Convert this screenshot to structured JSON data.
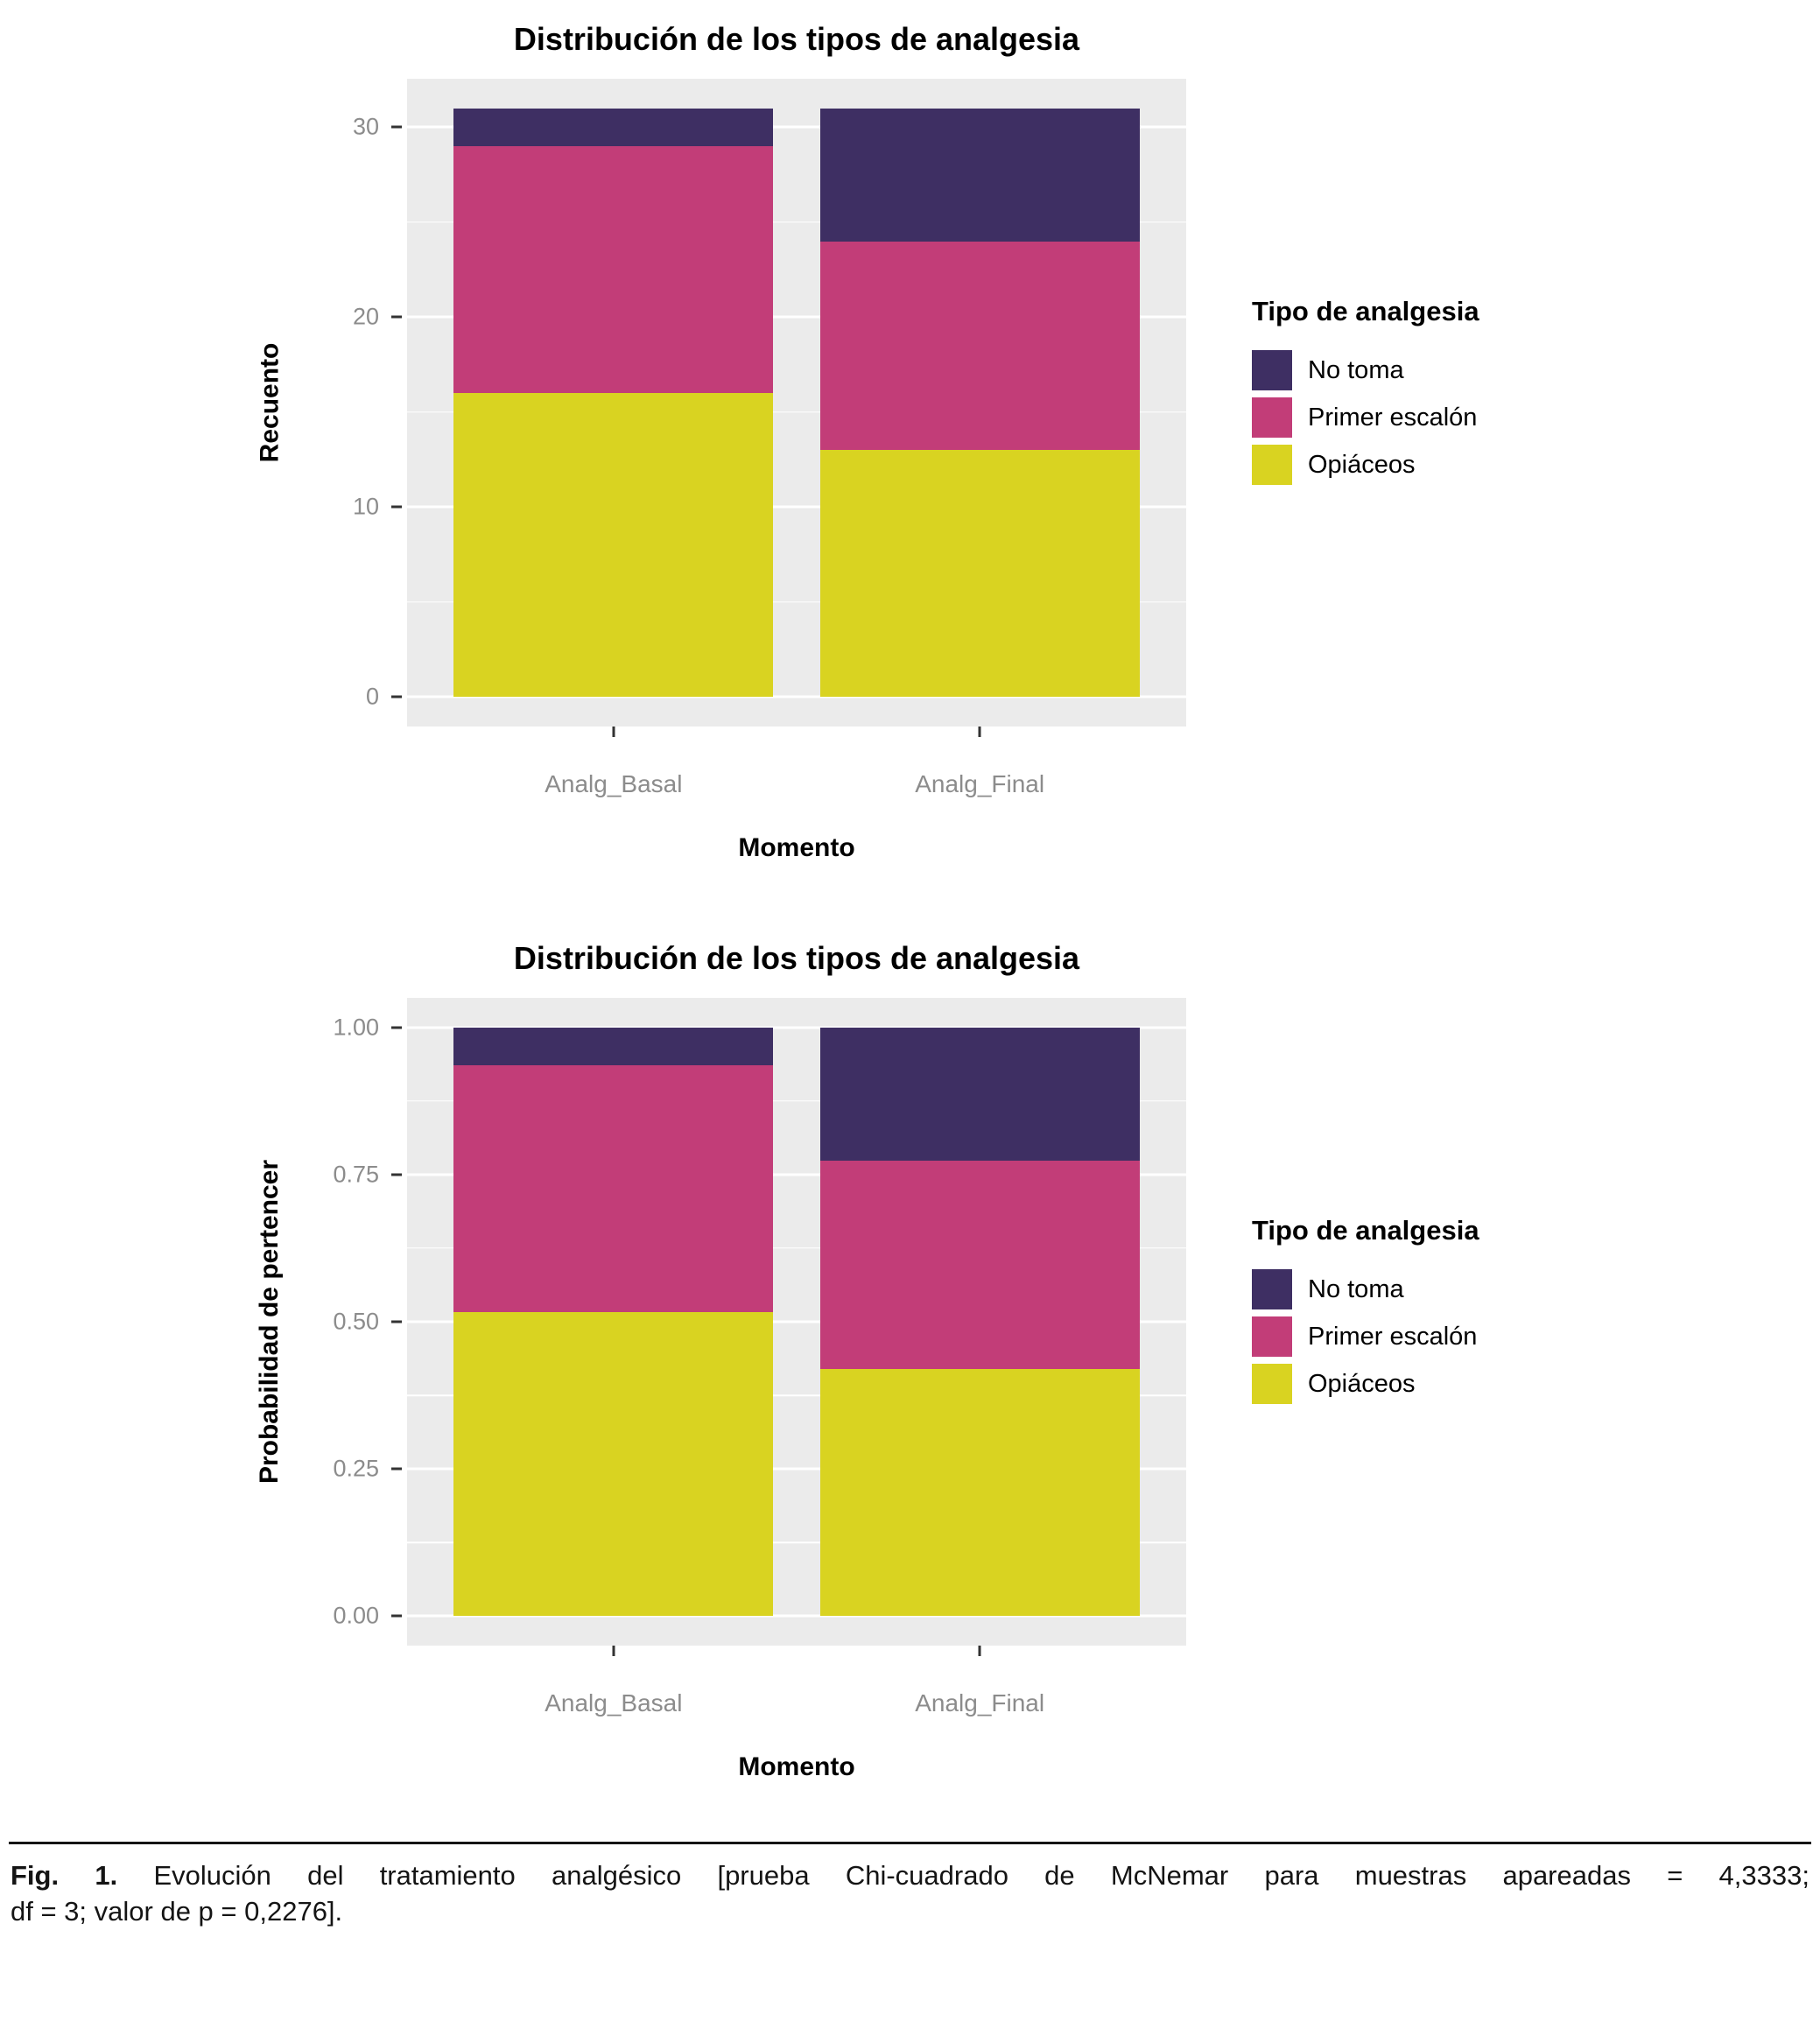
{
  "palette": {
    "no_toma": "#3e2f63",
    "primer_escalon": "#c23d78",
    "opiaceos": "#d9d321",
    "panel_bg": "#ebebeb",
    "grid_major": "#ffffff",
    "grid_minor": "#ffffff",
    "tick_mark": "#333333",
    "tick_label": "#8c8c8c",
    "axis_title": "#000000",
    "title": "#000000",
    "caption": "#141414"
  },
  "chart_data": [
    {
      "type": "bar",
      "stacked": true,
      "title": "Distribución de los tipos de analgesia",
      "xlabel": "Momento",
      "ylabel": "Recuento",
      "legend_title": "Tipo de analgesia",
      "legend_position": "right",
      "grid": true,
      "categories": [
        "Analg_Basal",
        "Analg_Final"
      ],
      "series": [
        {
          "name": "No toma",
          "color_key": "no_toma",
          "values": [
            2,
            7
          ]
        },
        {
          "name": "Primer escalón",
          "color_key": "primer_escalon",
          "values": [
            13,
            11
          ]
        },
        {
          "name": "Opiáceos",
          "color_key": "opiaceos",
          "values": [
            16,
            13
          ]
        }
      ],
      "ylim": [
        0,
        31
      ],
      "yticks": [
        {
          "v": 0,
          "label": "0"
        },
        {
          "v": 10,
          "label": "10"
        },
        {
          "v": 20,
          "label": "20"
        },
        {
          "v": 30,
          "label": "30"
        }
      ],
      "yticks_minor": [
        5,
        15,
        25
      ]
    },
    {
      "type": "bar",
      "stacked": true,
      "title": "Distribución de los tipos de analgesia",
      "xlabel": "Momento",
      "ylabel": "Probabilidad de pertencer",
      "legend_title": "Tipo de analgesia",
      "legend_position": "right",
      "grid": true,
      "categories": [
        "Analg_Basal",
        "Analg_Final"
      ],
      "series": [
        {
          "name": "No toma",
          "color_key": "no_toma",
          "values": [
            0.065,
            0.226
          ]
        },
        {
          "name": "Primer escalón",
          "color_key": "primer_escalon",
          "values": [
            0.419,
            0.355
          ]
        },
        {
          "name": "Opiáceos",
          "color_key": "opiaceos",
          "values": [
            0.516,
            0.419
          ]
        }
      ],
      "ylim": [
        0,
        1
      ],
      "yticks": [
        {
          "v": 0,
          "label": "0.00"
        },
        {
          "v": 0.25,
          "label": "0.25"
        },
        {
          "v": 0.5,
          "label": "0.50"
        },
        {
          "v": 0.75,
          "label": "0.75"
        },
        {
          "v": 1,
          "label": "1.00"
        }
      ],
      "yticks_minor": [
        0.125,
        0.375,
        0.625,
        0.875
      ]
    }
  ],
  "caption": {
    "label": "Fig. 1.",
    "line1": "Evolución del tratamiento analgésico [prueba Chi-cuadrado de McNemar para muestras apareadas = 4,3333;",
    "line2": "df = 3; valor de p = 0,2276]."
  }
}
